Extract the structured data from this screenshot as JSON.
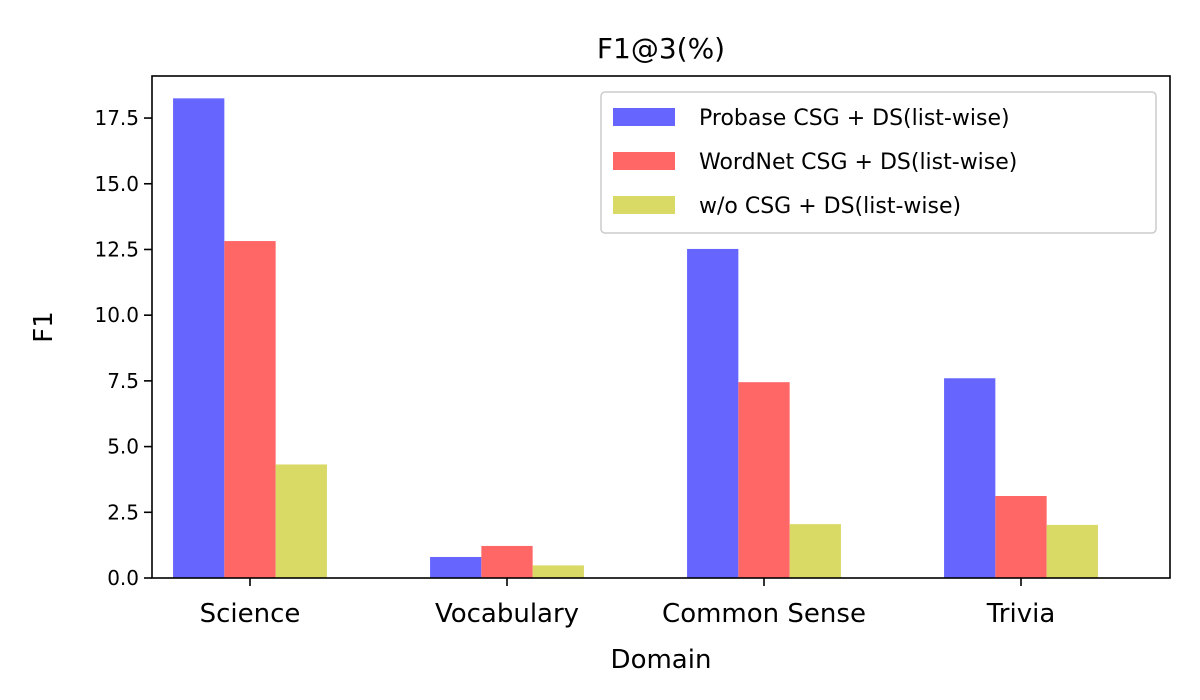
{
  "chart_data": {
    "type": "bar",
    "title": "F1@3(%)",
    "xlabel": "Domain",
    "ylabel": "F1",
    "categories": [
      "Science",
      "Vocabulary",
      "Common Sense",
      "Trivia"
    ],
    "series": [
      {
        "name": "Probase CSG + DS(list-wise)",
        "color": "#6666ff",
        "values": [
          18.25,
          0.8,
          12.52,
          7.6
        ]
      },
      {
        "name": "WordNet CSG + DS(list-wise)",
        "color": "#ff6666",
        "values": [
          12.82,
          1.22,
          7.45,
          3.12
        ]
      },
      {
        "name": "w/o CSG + DS(list-wise)",
        "color": "#d9d966",
        "values": [
          4.32,
          0.48,
          2.05,
          2.02
        ]
      }
    ],
    "yticks": [
      0.0,
      2.5,
      5.0,
      7.5,
      10.0,
      12.5,
      15.0,
      17.5
    ],
    "ylim": [
      0,
      19.1
    ],
    "legend_position": "top-right",
    "grid": false
  }
}
